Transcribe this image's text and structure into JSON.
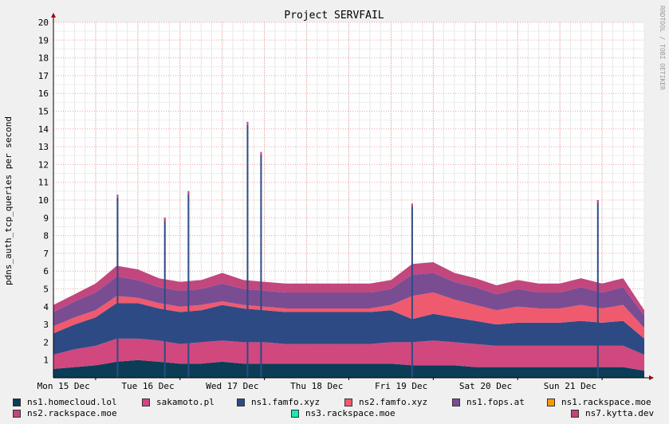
{
  "chart_data": {
    "type": "area",
    "stacked": true,
    "title": "Project SERVFAIL",
    "ylabel": "pdns_auth_tcp_queries per second",
    "xlabel": "",
    "watermark": "RRDTOOL / TOBI OETIKER",
    "ylim": [
      0,
      20
    ],
    "yticks": [
      1,
      2,
      3,
      4,
      5,
      6,
      7,
      8,
      9,
      10,
      11,
      12,
      13,
      14,
      15,
      16,
      17,
      18,
      19,
      20
    ],
    "xticks": [
      "Mon 15 Dec",
      "Tue 16 Dec",
      "Wed 17 Dec",
      "Thu 18 Dec",
      "Fri 19 Dec",
      "Sat 20 Dec",
      "Sun 21 Dec"
    ],
    "grid": true,
    "legend_position": "bottom",
    "background_color": "#f0f0f0",
    "plot_background": "#ffffff",
    "x": [
      0,
      0.25,
      0.5,
      0.75,
      1.0,
      1.25,
      1.5,
      1.75,
      2.0,
      2.25,
      2.5,
      2.75,
      3.0,
      3.25,
      3.5,
      3.75,
      4.0,
      4.25,
      4.5,
      4.75,
      5.0,
      5.25,
      5.5,
      5.75,
      6.0,
      6.25,
      6.5,
      6.75,
      7.0
    ],
    "series": [
      {
        "name": "ns1.homecloud.lol",
        "color": "#0b3d57",
        "values": [
          0.5,
          0.6,
          0.7,
          0.9,
          1.0,
          0.9,
          0.8,
          0.8,
          0.9,
          0.8,
          0.8,
          0.8,
          0.8,
          0.8,
          0.8,
          0.8,
          0.8,
          0.7,
          0.7,
          0.7,
          0.6,
          0.6,
          0.6,
          0.6,
          0.6,
          0.6,
          0.6,
          0.6,
          0.4
        ]
      },
      {
        "name": "sakamoto.pl",
        "color": "#d1487e",
        "values": [
          0.8,
          1.0,
          1.1,
          1.3,
          1.2,
          1.2,
          1.1,
          1.2,
          1.2,
          1.2,
          1.2,
          1.1,
          1.1,
          1.1,
          1.1,
          1.1,
          1.2,
          1.3,
          1.4,
          1.3,
          1.3,
          1.2,
          1.2,
          1.2,
          1.2,
          1.2,
          1.2,
          1.2,
          0.9
        ]
      },
      {
        "name": "ns1.famfo.xyz",
        "color": "#2e4a84",
        "values": [
          1.2,
          1.4,
          1.6,
          2.0,
          2.0,
          1.8,
          1.8,
          1.8,
          2.0,
          1.9,
          1.8,
          1.8,
          1.8,
          1.8,
          1.8,
          1.8,
          1.8,
          1.3,
          1.5,
          1.4,
          1.3,
          1.2,
          1.3,
          1.3,
          1.3,
          1.4,
          1.3,
          1.4,
          0.9
        ]
      },
      {
        "name": "ns2.famfo.xyz",
        "color": "#f05a6e",
        "values": [
          0.4,
          0.4,
          0.4,
          0.4,
          0.3,
          0.3,
          0.3,
          0.3,
          0.2,
          0.2,
          0.2,
          0.2,
          0.2,
          0.2,
          0.2,
          0.2,
          0.3,
          1.3,
          1.2,
          1.0,
          0.9,
          0.8,
          0.9,
          0.8,
          0.8,
          0.9,
          0.8,
          0.9,
          0.6
        ]
      },
      {
        "name": "ns1.fops.at",
        "color": "#7a4d93",
        "values": [
          0.8,
          0.9,
          1.0,
          1.1,
          1.0,
          0.9,
          0.9,
          0.9,
          1.0,
          0.9,
          0.9,
          0.9,
          0.9,
          0.9,
          0.9,
          0.9,
          0.9,
          1.2,
          1.1,
          1.0,
          1.0,
          0.9,
          1.0,
          0.9,
          0.9,
          1.0,
          0.9,
          1.0,
          0.7
        ]
      },
      {
        "name": "ns1.rackspace.moe",
        "color": "#f59b00",
        "values": [
          0,
          0,
          0,
          0,
          0,
          0,
          0,
          0,
          0,
          0,
          0,
          0,
          0,
          0,
          0,
          0,
          0,
          0,
          0,
          0,
          0,
          0,
          0,
          0,
          0,
          0,
          0,
          0,
          0
        ]
      },
      {
        "name": "ns2.rackspace.moe",
        "color": "#c2477e",
        "values": [
          0.4,
          0.4,
          0.5,
          0.6,
          0.6,
          0.5,
          0.5,
          0.5,
          0.6,
          0.5,
          0.5,
          0.5,
          0.5,
          0.5,
          0.5,
          0.5,
          0.5,
          0.6,
          0.6,
          0.5,
          0.5,
          0.5,
          0.5,
          0.5,
          0.5,
          0.5,
          0.5,
          0.5,
          0.3
        ]
      },
      {
        "name": "ns3.rackspace.moe",
        "color": "#1de8b5",
        "values": [
          0,
          0,
          0,
          0,
          0,
          0,
          0,
          0,
          0,
          0,
          0,
          0,
          0,
          0,
          0,
          0,
          0,
          0,
          0,
          0,
          0,
          0,
          0,
          0,
          0,
          0,
          0,
          0,
          0
        ]
      },
      {
        "name": "ns7.kytta.dev",
        "color": "#c0457a",
        "values": [
          0,
          0,
          0,
          0,
          0,
          0,
          0,
          0,
          0,
          0,
          0,
          0,
          0,
          0,
          0,
          0,
          0,
          0,
          0,
          0,
          0,
          0,
          0,
          0,
          0,
          0,
          0,
          0,
          0
        ]
      }
    ],
    "spikes": [
      {
        "x": 0.76,
        "total": 10.3
      },
      {
        "x": 1.32,
        "total": 9.0
      },
      {
        "x": 1.6,
        "total": 10.5
      },
      {
        "x": 2.3,
        "total": 14.4
      },
      {
        "x": 2.46,
        "total": 12.7
      },
      {
        "x": 4.25,
        "total": 9.8
      },
      {
        "x": 6.45,
        "total": 10.0
      }
    ]
  }
}
